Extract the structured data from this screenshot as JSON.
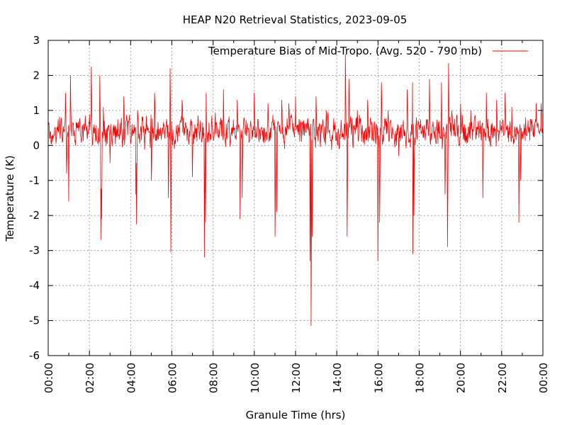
{
  "chart_data": {
    "type": "line",
    "title": "HEAP N20 Retrieval Statistics, 2023-09-05",
    "xlabel": "Granule Time (hrs)",
    "ylabel": "Temperature (K)",
    "xlim": [
      "00:00",
      "00:00 (+24h)"
    ],
    "ylim": [
      -6,
      3
    ],
    "x_tick_labels": [
      "00:00",
      "02:00",
      "04:00",
      "06:00",
      "08:00",
      "10:00",
      "12:00",
      "14:00",
      "16:00",
      "18:00",
      "20:00",
      "22:00",
      "00:00"
    ],
    "y_tick_labels": [
      "3",
      "2",
      "1",
      "0",
      "-1",
      "-2",
      "-3",
      "-4",
      "-5",
      "-6"
    ],
    "grid": true,
    "legend_position": "top-right",
    "series": [
      {
        "name": "Temperature Bias of Mid-Tropo. (Avg. 520 - 790 mb)",
        "color": "#ff0000",
        "baseline_mean": 0.4,
        "points": [
          [
            "00:50",
            1.5
          ],
          [
            "00:53",
            -0.8
          ],
          [
            "01:05",
            2.0
          ],
          [
            "01:00",
            -1.6
          ],
          [
            "02:05",
            2.25
          ],
          [
            "02:30",
            2.0
          ],
          [
            "02:33",
            -2.7
          ],
          [
            "02:35",
            -2.1
          ],
          [
            "02:40",
            1.1
          ],
          [
            "03:00",
            -0.5
          ],
          [
            "03:40",
            1.4
          ],
          [
            "04:15",
            -1.4
          ],
          [
            "04:17",
            -2.25
          ],
          [
            "04:20",
            1.0
          ],
          [
            "05:00",
            -1.0
          ],
          [
            "05:10",
            1.5
          ],
          [
            "05:50",
            -1.5
          ],
          [
            "05:55",
            2.2
          ],
          [
            "05:57",
            -3.05
          ],
          [
            "06:30",
            1.3
          ],
          [
            "07:00",
            -0.9
          ],
          [
            "07:35",
            -3.2
          ],
          [
            "07:38",
            -2.2
          ],
          [
            "07:40",
            1.5
          ],
          [
            "08:30",
            1.6
          ],
          [
            "09:10",
            1.3
          ],
          [
            "09:18",
            -2.1
          ],
          [
            "09:25",
            -1.5
          ],
          [
            "10:00",
            1.5
          ],
          [
            "10:40",
            1.2
          ],
          [
            "11:00",
            -2.6
          ],
          [
            "11:05",
            -1.9
          ],
          [
            "11:20",
            1.3
          ],
          [
            "11:40",
            1.2
          ],
          [
            "12:00",
            1.4
          ],
          [
            "12:42",
            -3.3
          ],
          [
            "12:45",
            -5.15
          ],
          [
            "12:48",
            -2.6
          ],
          [
            "13:00",
            1.4
          ],
          [
            "13:30",
            1.0
          ],
          [
            "14:25",
            2.6
          ],
          [
            "14:30",
            -2.6
          ],
          [
            "14:35",
            1.9
          ],
          [
            "15:00",
            1.0
          ],
          [
            "15:30",
            1.3
          ],
          [
            "16:00",
            -3.3
          ],
          [
            "16:05",
            -2.2
          ],
          [
            "16:10",
            1.8
          ],
          [
            "16:30",
            1.0
          ],
          [
            "17:00",
            -0.3
          ],
          [
            "17:25",
            1.6
          ],
          [
            "17:40",
            1.8
          ],
          [
            "17:42",
            -3.1
          ],
          [
            "17:45",
            -2.0
          ],
          [
            "18:30",
            1.9
          ],
          [
            "19:05",
            1.8
          ],
          [
            "19:15",
            -1.4
          ],
          [
            "19:22",
            -2.9
          ],
          [
            "19:25",
            2.35
          ],
          [
            "19:35",
            1.0
          ],
          [
            "20:00",
            1.2
          ],
          [
            "20:30",
            1.0
          ],
          [
            "21:05",
            -1.5
          ],
          [
            "21:15",
            1.5
          ],
          [
            "21:45",
            1.3
          ],
          [
            "22:10",
            1.5
          ],
          [
            "22:30",
            1.1
          ],
          [
            "22:50",
            -2.2
          ],
          [
            "22:55",
            -1.0
          ],
          [
            "23:10",
            0.8
          ],
          [
            "23:40",
            1.2
          ],
          [
            "23:55",
            1.2
          ]
        ]
      }
    ]
  }
}
